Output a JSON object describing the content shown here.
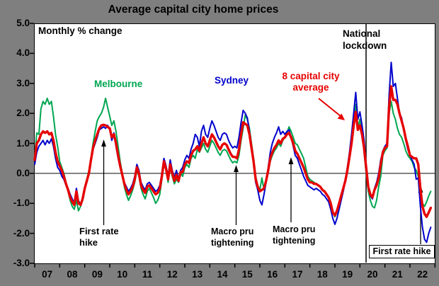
{
  "title": "Average capital city home prices",
  "plot_note": "Monthly % change",
  "colors": {
    "melbourne": "#00A651",
    "sydney": "#0000CC",
    "average": "#E60000",
    "background": "#7F7F7F",
    "plot_background": "#FFFFFF",
    "axis": "#000000"
  },
  "series_labels": {
    "melbourne": "Melbourne",
    "sydney": "Sydney",
    "average_line1": "8 capital city",
    "average_line2": "average"
  },
  "annotations": {
    "lockdown_line1": "National",
    "lockdown_line2": "lockdown",
    "rate_hike_2009_line1": "First rate",
    "rate_hike_2009_line2": "hike",
    "macro_pru_1_line1": "Macro pru",
    "macro_pru_1_line2": "tightening",
    "macro_pru_2_line1": "Macro pru",
    "macro_pru_2_line2": "tightening",
    "rate_hike_2022": "First rate hike"
  },
  "chart_data": {
    "type": "line",
    "title": "Average capital city home prices",
    "ylabel": "Monthly % change",
    "x_start": "2007-01",
    "x_end": "2022-11",
    "x_frequency": "monthly",
    "x_tick_labels": [
      "07",
      "08",
      "09",
      "10",
      "11",
      "12",
      "13",
      "14",
      "15",
      "16",
      "17",
      "18",
      "19",
      "20",
      "21",
      "22"
    ],
    "y_ticks": [
      5.0,
      4.0,
      3.0,
      2.0,
      1.0,
      0.0,
      -1.0,
      -2.0,
      -3.0
    ],
    "ylim": [
      -3.0,
      5.0
    ],
    "grid": "zero line only",
    "legend": "inline colored text labels",
    "events": [
      {
        "label": "First rate hike",
        "x": "2009-10"
      },
      {
        "label": "Macro pru tightening",
        "x": "2015-01"
      },
      {
        "label": "Macro pru tightening",
        "x": "2017-04"
      },
      {
        "label": "National lockdown",
        "x": "2020-04"
      },
      {
        "label": "First rate hike",
        "x": "2022-05"
      }
    ],
    "series": [
      {
        "name": "Melbourne",
        "color": "#00A651",
        "values": [
          0.6,
          1.35,
          1.3,
          2.15,
          2.4,
          2.3,
          2.5,
          2.3,
          2.4,
          1.9,
          1.3,
          0.9,
          0.4,
          0.2,
          0.0,
          -0.3,
          -0.6,
          -0.9,
          -1.1,
          -1.2,
          -0.9,
          -1.25,
          -1.1,
          -0.9,
          -0.5,
          -0.2,
          0.1,
          0.5,
          1.0,
          1.4,
          1.75,
          1.9,
          2.0,
          2.2,
          2.5,
          2.2,
          1.9,
          1.6,
          1.75,
          1.4,
          0.9,
          0.4,
          0.0,
          -0.45,
          -0.7,
          -0.9,
          -0.75,
          -0.55,
          -0.3,
          0.1,
          -0.1,
          -0.5,
          -0.7,
          -0.85,
          -0.6,
          -0.5,
          -0.65,
          -0.8,
          -1.0,
          -0.9,
          -0.7,
          -0.2,
          0.3,
          0.1,
          -0.3,
          0.2,
          -0.1,
          -0.35,
          -0.2,
          -0.3,
          0.0,
          -0.1,
          0.2,
          0.3,
          0.2,
          0.5,
          0.6,
          0.5,
          0.8,
          0.7,
          0.85,
          1.0,
          0.8,
          0.7,
          0.9,
          1.1,
          1.0,
          0.85,
          0.7,
          0.6,
          0.75,
          0.8,
          0.75,
          0.6,
          0.45,
          0.35,
          0.4,
          0.35,
          0.6,
          1.1,
          1.5,
          1.95,
          1.8,
          1.5,
          1.0,
          0.5,
          -0.1,
          -0.4,
          -0.55,
          -0.15,
          -0.55,
          -0.2,
          0.1,
          0.4,
          0.6,
          0.75,
          0.85,
          1.0,
          0.9,
          1.1,
          1.2,
          1.35,
          1.55,
          1.4,
          1.2,
          1.0,
          0.95,
          0.8,
          0.65,
          0.5,
          0.2,
          -0.1,
          -0.2,
          -0.25,
          -0.3,
          -0.35,
          -0.4,
          -0.45,
          -0.55,
          -0.6,
          -0.7,
          -0.8,
          -1.0,
          -1.3,
          -1.45,
          -1.3,
          -1.0,
          -0.7,
          -0.5,
          -0.25,
          0.1,
          0.6,
          1.0,
          1.7,
          2.3,
          1.5,
          1.8,
          1.4,
          0.7,
          0.0,
          -0.6,
          -0.9,
          -1.1,
          -1.15,
          -0.9,
          -0.45,
          -0.1,
          0.6,
          0.75,
          0.85,
          2.0,
          2.4,
          2.0,
          1.8,
          1.5,
          1.3,
          1.2,
          1.0,
          0.75,
          0.6,
          0.5,
          0.4,
          0.2,
          0.1,
          -0.1,
          -0.7,
          -1.0,
          -1.1,
          -0.95,
          -0.75,
          -0.6
        ]
      },
      {
        "name": "Sydney",
        "color": "#0000CC",
        "values": [
          0.3,
          0.7,
          0.9,
          1.0,
          1.1,
          0.95,
          1.1,
          1.0,
          1.15,
          0.9,
          0.5,
          0.2,
          0.1,
          -0.1,
          -0.2,
          -0.4,
          -0.5,
          -0.7,
          -0.85,
          -1.0,
          -0.5,
          -0.9,
          -1.05,
          -0.8,
          -0.45,
          -0.3,
          0.0,
          0.4,
          0.8,
          1.0,
          1.2,
          1.45,
          1.5,
          1.55,
          1.5,
          1.6,
          1.45,
          1.1,
          1.35,
          0.9,
          0.5,
          0.2,
          -0.1,
          -0.3,
          -0.45,
          -0.6,
          -0.5,
          -0.35,
          -0.1,
          0.3,
          0.1,
          -0.3,
          -0.45,
          -0.55,
          -0.35,
          -0.3,
          -0.4,
          -0.5,
          -0.6,
          -0.55,
          -0.4,
          0.0,
          0.5,
          0.25,
          -0.1,
          0.45,
          0.1,
          -0.15,
          0.1,
          -0.2,
          0.1,
          0.2,
          0.45,
          0.6,
          0.5,
          0.8,
          1.0,
          1.3,
          1.2,
          0.9,
          1.4,
          1.6,
          1.3,
          1.2,
          1.5,
          1.75,
          1.6,
          1.4,
          1.2,
          1.1,
          1.3,
          1.35,
          1.3,
          1.1,
          0.95,
          0.85,
          0.9,
          0.85,
          1.2,
          1.7,
          2.1,
          2.0,
          1.85,
          1.4,
          0.9,
          0.4,
          -0.3,
          -0.55,
          -0.9,
          -1.05,
          -0.7,
          -0.3,
          0.2,
          0.7,
          1.0,
          1.2,
          1.35,
          1.55,
          1.3,
          1.4,
          1.3,
          1.4,
          1.45,
          1.2,
          0.9,
          0.6,
          0.5,
          0.3,
          0.1,
          -0.1,
          -0.25,
          -0.4,
          -0.45,
          -0.5,
          -0.55,
          -0.5,
          -0.55,
          -0.6,
          -0.7,
          -0.75,
          -0.85,
          -0.95,
          -1.2,
          -1.5,
          -1.7,
          -1.5,
          -1.2,
          -0.9,
          -0.6,
          -0.25,
          0.2,
          0.7,
          1.3,
          2.0,
          2.7,
          1.8,
          2.05,
          1.6,
          1.1,
          0.3,
          -0.4,
          -0.75,
          -0.85,
          -0.5,
          -0.3,
          0.0,
          0.45,
          0.75,
          0.9,
          1.0,
          2.6,
          3.7,
          2.9,
          3.0,
          2.5,
          2.0,
          1.85,
          1.5,
          1.1,
          0.8,
          0.6,
          0.45,
          0.3,
          -0.2,
          -0.15,
          -1.1,
          -1.8,
          -2.2,
          -2.3,
          -2.0,
          -1.8
        ]
      },
      {
        "name": "8 capital city average",
        "color": "#E60000",
        "values": [
          0.45,
          1.0,
          1.1,
          1.3,
          1.4,
          1.35,
          1.4,
          1.3,
          1.35,
          1.1,
          0.7,
          0.4,
          0.25,
          0.1,
          -0.1,
          -0.35,
          -0.55,
          -0.8,
          -0.95,
          -1.05,
          -0.6,
          -1.0,
          -1.05,
          -0.85,
          -0.5,
          -0.25,
          0.0,
          0.45,
          0.85,
          1.1,
          1.3,
          1.5,
          1.6,
          1.62,
          1.6,
          1.55,
          1.5,
          1.2,
          1.3,
          1.0,
          0.6,
          0.25,
          -0.05,
          -0.35,
          -0.55,
          -0.7,
          -0.6,
          -0.45,
          -0.2,
          0.2,
          0.0,
          -0.4,
          -0.55,
          -0.65,
          -0.45,
          -0.4,
          -0.5,
          -0.6,
          -0.7,
          -0.65,
          -0.5,
          -0.1,
          0.4,
          0.15,
          -0.2,
          0.3,
          0.0,
          -0.25,
          -0.05,
          -0.25,
          0.05,
          0.05,
          0.3,
          0.4,
          0.35,
          0.6,
          0.75,
          0.8,
          0.9,
          0.75,
          1.0,
          1.2,
          1.0,
          0.9,
          1.1,
          1.3,
          1.2,
          1.05,
          0.9,
          0.8,
          0.95,
          1.0,
          0.95,
          0.8,
          0.65,
          0.55,
          0.55,
          0.5,
          0.8,
          1.3,
          1.7,
          1.65,
          1.6,
          1.3,
          0.85,
          0.4,
          -0.2,
          -0.45,
          -0.6,
          -0.55,
          -0.5,
          -0.25,
          0.1,
          0.5,
          0.7,
          0.85,
          0.95,
          1.1,
          1.0,
          1.15,
          1.2,
          1.3,
          1.35,
          1.2,
          1.0,
          0.75,
          0.65,
          0.5,
          0.35,
          0.2,
          0.0,
          -0.2,
          -0.3,
          -0.3,
          -0.35,
          -0.35,
          -0.4,
          -0.45,
          -0.55,
          -0.6,
          -0.7,
          -0.8,
          -1.0,
          -1.3,
          -1.4,
          -1.25,
          -1.0,
          -0.75,
          -0.5,
          -0.25,
          0.1,
          0.55,
          1.0,
          1.6,
          2.05,
          1.45,
          1.6,
          1.3,
          0.85,
          0.2,
          -0.45,
          -0.7,
          -0.8,
          -0.55,
          -0.4,
          -0.15,
          0.3,
          0.7,
          0.85,
          0.9,
          2.2,
          2.9,
          2.45,
          2.45,
          2.3,
          2.0,
          1.75,
          1.5,
          1.15,
          0.9,
          0.6,
          0.55,
          0.5,
          0.5,
          0.3,
          -0.5,
          -1.1,
          -1.35,
          -1.45,
          -1.3,
          -1.15
        ]
      }
    ]
  }
}
